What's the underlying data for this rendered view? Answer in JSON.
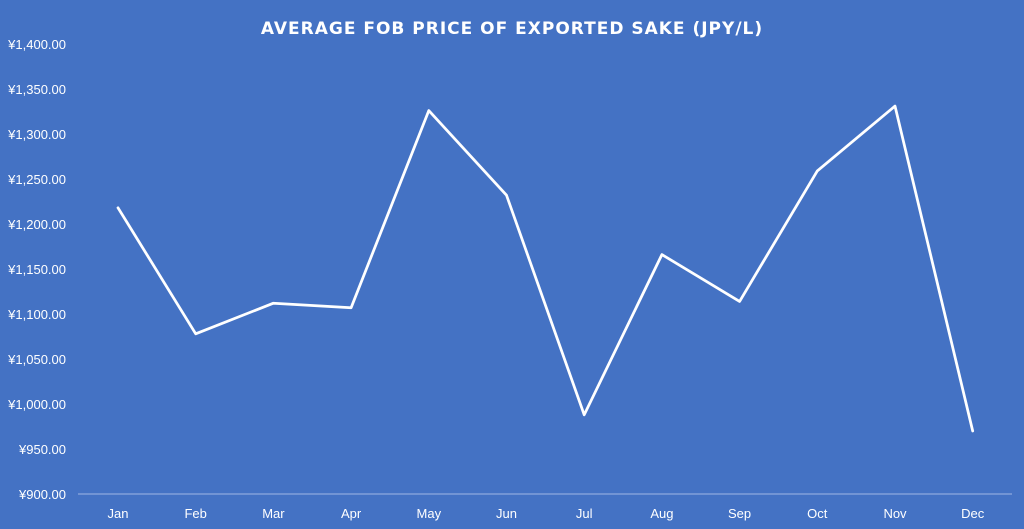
{
  "chart_data": {
    "type": "line",
    "title": "AVERAGE FOB PRICE OF EXPORTED SAKE  (JPY/L)",
    "xlabel": "",
    "ylabel": "",
    "categories": [
      "Jan",
      "Feb",
      "Mar",
      "Apr",
      "May",
      "Jun",
      "Jul",
      "Aug",
      "Sep",
      "Oct",
      "Nov",
      "Dec"
    ],
    "series": [
      {
        "values": [
          1218,
          1078,
          1112,
          1107,
          1326,
          1232,
          988,
          1166,
          1114,
          1259,
          1331,
          970
        ]
      }
    ],
    "y_ticks": [
      "¥900.00",
      "¥950.00",
      "¥1,000.00",
      "¥1,050.00",
      "¥1,100.00",
      "¥1,150.00",
      "¥1,200.00",
      "¥1,250.00",
      "¥1,300.00",
      "¥1,350.00",
      "¥1,400.00"
    ],
    "ylim": [
      900,
      1400
    ],
    "grid": false,
    "drop_lines": true,
    "colors": {
      "background": "#4472c4",
      "line": "#ffffff",
      "text": "#ffffff"
    }
  }
}
